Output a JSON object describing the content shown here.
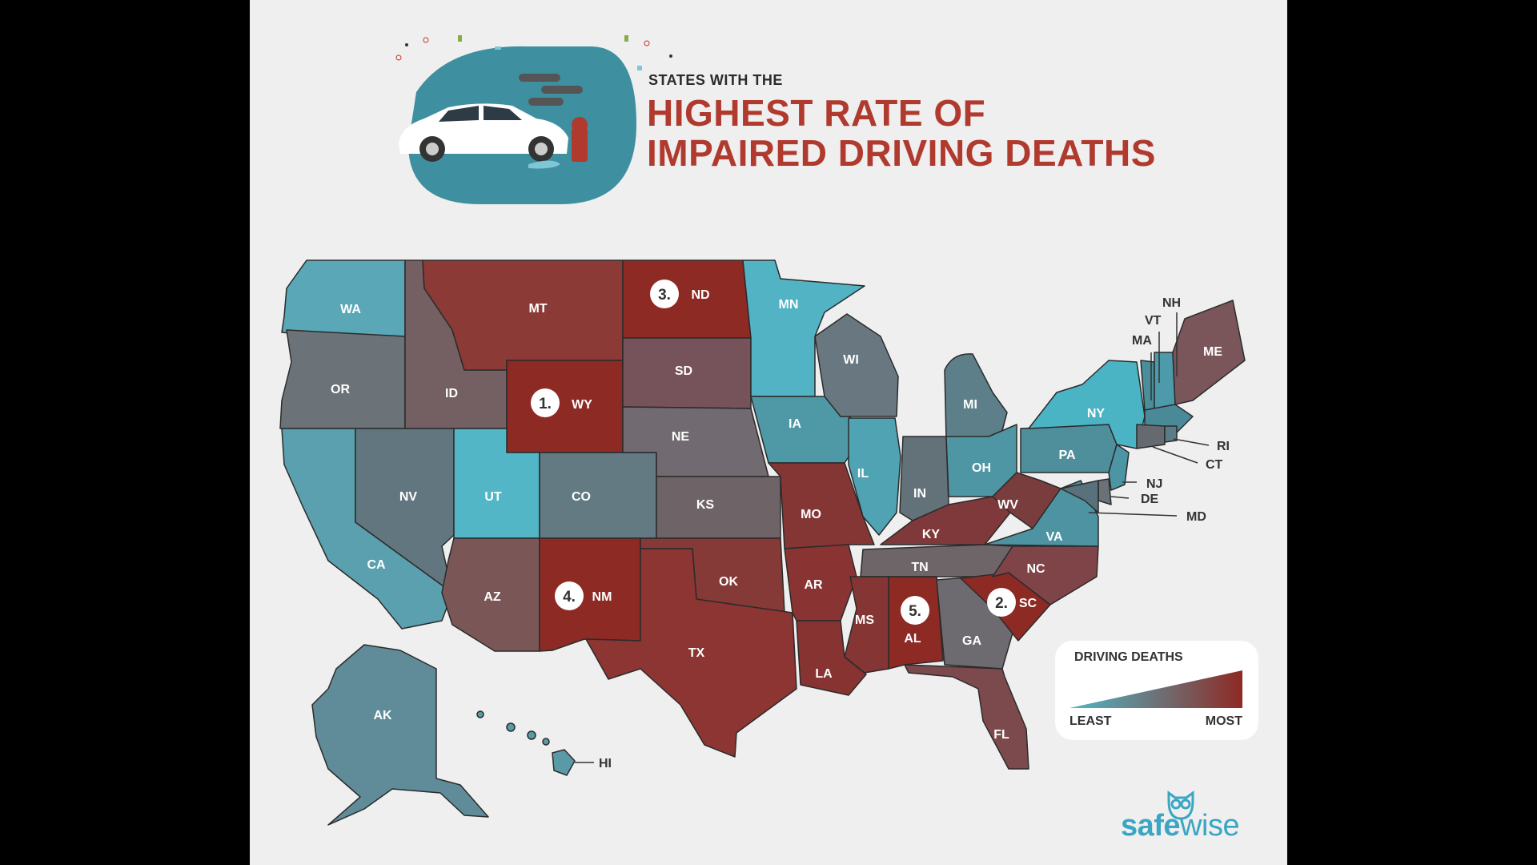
{
  "title": {
    "small": "STATES WITH THE",
    "line1": "HIGHEST RATE OF",
    "line2": "IMPAIRED DRIVING DEATHS"
  },
  "colors": {
    "least": "#52b6c6",
    "mid": "#6c7378",
    "most": "#8e2a24",
    "background": "#efefef",
    "title_accent": "#b03a2e"
  },
  "legend": {
    "title": "DRIVING DEATHS",
    "least": "LEAST",
    "most": "MOST"
  },
  "rankings": [
    {
      "rank": "1.",
      "state": "WY"
    },
    {
      "rank": "2.",
      "state": "SC"
    },
    {
      "rank": "3.",
      "state": "ND"
    },
    {
      "rank": "4.",
      "state": "NM"
    },
    {
      "rank": "5.",
      "state": "AL"
    }
  ],
  "states": {
    "WA": "WA",
    "OR": "OR",
    "CA": "CA",
    "ID": "ID",
    "NV": "NV",
    "MT": "MT",
    "WY": "WY",
    "UT": "UT",
    "AZ": "AZ",
    "CO": "CO",
    "NM": "NM",
    "ND": "ND",
    "SD": "SD",
    "NE": "NE",
    "KS": "KS",
    "OK": "OK",
    "TX": "TX",
    "MN": "MN",
    "IA": "IA",
    "MO": "MO",
    "AR": "AR",
    "LA": "LA",
    "WI": "WI",
    "IL": "IL",
    "MS": "MS",
    "MI": "MI",
    "IN": "IN",
    "KY": "KY",
    "TN": "TN",
    "AL": "AL",
    "OH": "OH",
    "WV": "WV",
    "GA": "GA",
    "FL": "FL",
    "SC": "SC",
    "NC": "NC",
    "VA": "VA",
    "PA": "PA",
    "NY": "NY",
    "ME": "ME",
    "VT": "VT",
    "NH": "NH",
    "MA": "MA",
    "RI": "RI",
    "CT": "CT",
    "NJ": "NJ",
    "DE": "DE",
    "MD": "MD",
    "AK": "AK",
    "HI": "HI"
  },
  "brand": {
    "name_part1": "safe",
    "name_part2": "wise"
  },
  "icons": {
    "header": "car-crash-hydrant-illustration",
    "logo": "owl-icon"
  }
}
